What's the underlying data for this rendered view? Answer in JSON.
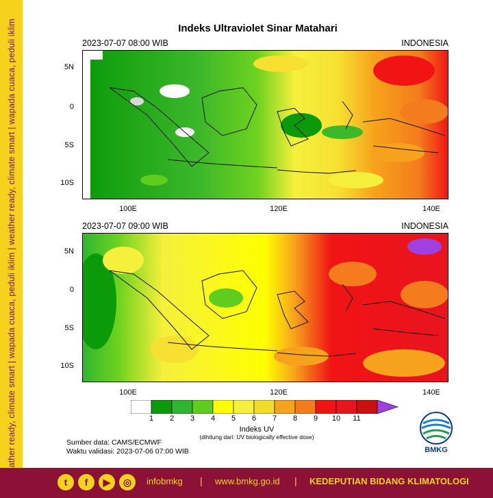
{
  "side_band": {
    "text": "weather ready, climate smart  |  wapada cuaca, peduli iklim  |  weather ready, climate smart  |  wapada cuaca, peduli iklim"
  },
  "title": "Indeks Ultraviolet Sinar Matahari",
  "panels": [
    {
      "date": "2023-07-07  08:00 WIB",
      "region": "INDONESIA"
    },
    {
      "date": "2023-07-07  09:00 WIB",
      "region": "INDONESIA"
    }
  ],
  "lat_labels": [
    "5N",
    "0",
    "5S",
    "10S"
  ],
  "lon_labels": [
    "100E",
    "120E",
    "140E"
  ],
  "colorbar": {
    "title": "Indeks UV",
    "note": "(dihitung dari: UV biologically effective dose)",
    "ticks": [
      "1",
      "2",
      "3",
      "4",
      "5",
      "6",
      "7",
      "8",
      "9",
      "10",
      "11"
    ],
    "colors": [
      "#ffffff",
      "#0a9a0a",
      "#2fb52f",
      "#5fcd1e",
      "#ffff00",
      "#f5f03c",
      "#f2dc2a",
      "#f7a21c",
      "#f47c1c",
      "#f01414",
      "#e8141e",
      "#cc1010",
      "#a040e0"
    ]
  },
  "source": {
    "line1": "Sumber data: CAMS/ECMWF",
    "line2": "Waktu validasi: 2023-07-06 07:00 WIB"
  },
  "logo": {
    "text": "BMKG",
    "icon": "bmkg-logo-icon"
  },
  "footer": {
    "socials": [
      {
        "icon": "twitter-icon",
        "glyph": "t"
      },
      {
        "icon": "facebook-icon",
        "glyph": "f"
      },
      {
        "icon": "youtube-icon",
        "glyph": "▶"
      },
      {
        "icon": "instagram-icon",
        "glyph": "◎"
      }
    ],
    "handle": "infobmkg",
    "separator": "|",
    "url": "www.bmkg.go.id",
    "org": "KEDEPUTIAN BIDANG KLIMATOLOGI"
  }
}
